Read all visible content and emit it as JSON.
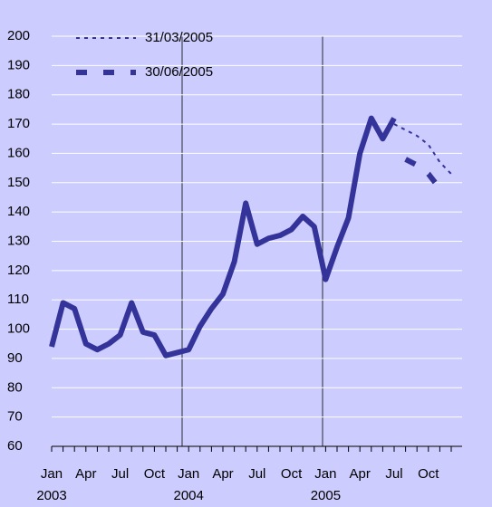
{
  "chart_data": {
    "type": "line",
    "categories": [
      "Jan\n2003",
      null,
      null,
      "Apr",
      null,
      null,
      "Jul",
      null,
      null,
      "Oct",
      null,
      null,
      "Jan\n2004",
      null,
      null,
      "Apr",
      null,
      null,
      "Jul",
      null,
      null,
      "Oct",
      null,
      null,
      "Jan\n2005",
      null,
      null,
      "Apr",
      null,
      null,
      "Jul",
      null,
      null,
      "Oct",
      null,
      null
    ],
    "series": [
      {
        "color": "#333399",
        "values": [
          94,
          109,
          107,
          95,
          93,
          95,
          98,
          109,
          99,
          98,
          91,
          92,
          93,
          101,
          107,
          112,
          123,
          143,
          129,
          131,
          132,
          134,
          138.5,
          135,
          117,
          128,
          138,
          160,
          172,
          165,
          172,
          null,
          null,
          null,
          null,
          null
        ]
      },
      {
        "name": "31/03/2005",
        "color": "#333399",
        "values": [
          null,
          null,
          null,
          null,
          null,
          null,
          null,
          null,
          null,
          null,
          null,
          null,
          null,
          null,
          null,
          null,
          null,
          null,
          null,
          null,
          null,
          null,
          null,
          null,
          null,
          null,
          null,
          null,
          null,
          null,
          170,
          168,
          166,
          163,
          157,
          153
        ]
      },
      {
        "name": "30/06/2005",
        "color": "#333399",
        "values": [
          null,
          null,
          null,
          null,
          null,
          null,
          null,
          null,
          null,
          null,
          null,
          null,
          null,
          null,
          null,
          null,
          null,
          null,
          null,
          null,
          null,
          null,
          null,
          null,
          null,
          null,
          null,
          null,
          null,
          null,
          null,
          158,
          156,
          153,
          148,
          null
        ]
      }
    ],
    "ylim": [
      60,
      200
    ],
    "yticks": [
      60,
      70,
      80,
      90,
      100,
      110,
      120,
      130,
      140,
      150,
      160,
      170,
      180,
      190,
      200
    ],
    "grid": true
  }
}
